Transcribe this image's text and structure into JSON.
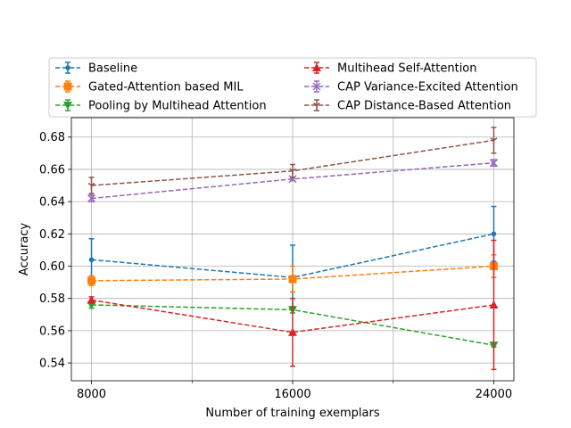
{
  "chart_data": {
    "type": "line",
    "title": "",
    "xlabel": "Number of training exemplars",
    "ylabel": "Accuracy",
    "x": [
      8000,
      16000,
      24000
    ],
    "x_tick_labels": [
      "8000",
      "16000",
      "24000"
    ],
    "x_minor_ticks": [
      12000,
      20000
    ],
    "xlim": [
      7200,
      24800
    ],
    "ylim": [
      0.529,
      0.692
    ],
    "y_ticks": [
      0.54,
      0.56,
      0.58,
      0.6,
      0.62,
      0.64,
      0.66,
      0.68
    ],
    "y_tick_labels": [
      "0.54",
      "0.56",
      "0.58",
      "0.60",
      "0.62",
      "0.64",
      "0.66",
      "0.68"
    ],
    "grid": true,
    "legend_placement": "top",
    "series": [
      {
        "name": "Baseline",
        "color": "#1f77b4",
        "marker": "point",
        "values": [
          0.604,
          0.593,
          0.62
        ],
        "errors": [
          0.013,
          0.02,
          0.017
        ]
      },
      {
        "name": "Gated-Attention based MIL",
        "color": "#ff7f0e",
        "marker": "square",
        "values": [
          0.591,
          0.592,
          0.6
        ],
        "errors": [
          0.003,
          0.008,
          0.007
        ]
      },
      {
        "name": "Pooling by Multihead Attention",
        "color": "#2ca02c",
        "marker": "triangle-down",
        "values": [
          0.576,
          0.573,
          0.551
        ],
        "errors": [
          0.002,
          0.002,
          0.001
        ]
      },
      {
        "name": "Multihead Self-Attention",
        "color": "#d62728",
        "marker": "triangle-up",
        "values": [
          0.579,
          0.559,
          0.576
        ],
        "errors": [
          0.002,
          0.021,
          0.04
        ]
      },
      {
        "name": "CAP Variance-Excited Attention",
        "color": "#9467bd",
        "marker": "x",
        "values": [
          0.642,
          0.654,
          0.664
        ],
        "errors": [
          0.002,
          0.001,
          0.002
        ]
      },
      {
        "name": "CAP Distance-Based Attention",
        "color": "#8c564b",
        "marker": "tri",
        "values": [
          0.65,
          0.659,
          0.678
        ],
        "errors": [
          0.005,
          0.004,
          0.008
        ]
      }
    ]
  }
}
